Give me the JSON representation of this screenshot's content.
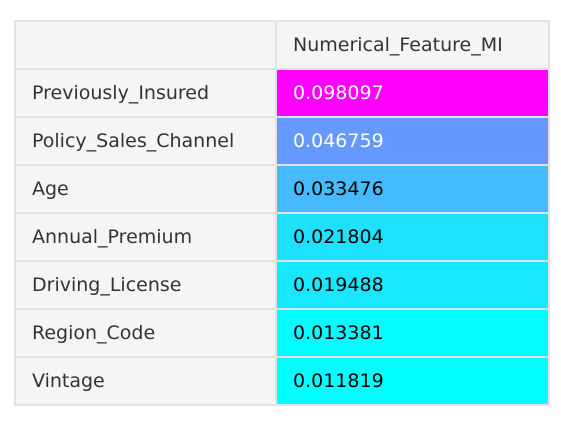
{
  "table": {
    "index_header": "",
    "column_header": "Numerical_Feature_MI",
    "rows": [
      {
        "label": "Previously_Insured",
        "value": "0.098097",
        "bg": "#ff00ff",
        "fg": "#ffffff"
      },
      {
        "label": "Policy_Sales_Channel",
        "value": "0.046759",
        "bg": "#6699ff",
        "fg": "#ffffff"
      },
      {
        "label": "Age",
        "value": "0.033476",
        "bg": "#45baff",
        "fg": "#000000"
      },
      {
        "label": "Annual_Premium",
        "value": "0.021804",
        "bg": "#1ee1ff",
        "fg": "#000000"
      },
      {
        "label": "Driving_License",
        "value": "0.019488",
        "bg": "#17e8ff",
        "fg": "#000000"
      },
      {
        "label": "Region_Code",
        "value": "0.013381",
        "bg": "#04fbff",
        "fg": "#000000"
      },
      {
        "label": "Vintage",
        "value": "0.011819",
        "bg": "#00ffff",
        "fg": "#000000"
      }
    ]
  }
}
